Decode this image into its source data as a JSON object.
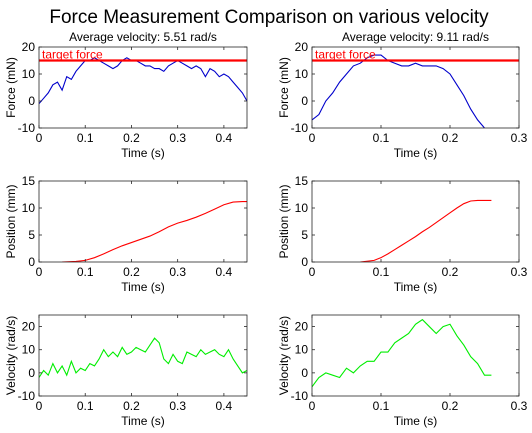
{
  "figure": {
    "title": "Force Measurement Comparison on various velocity"
  },
  "chart_data": [
    {
      "type": "line",
      "title": "Average velocity: 5.51 rad/s",
      "xlabel": "Time (s)",
      "ylabel": "Force (mN)",
      "xlim": [
        0,
        0.45
      ],
      "ylim": [
        -10,
        20
      ],
      "xticks": [
        "0",
        "0.1",
        "0.2",
        "0.3",
        "0.4"
      ],
      "yticks": [
        "-10",
        "0",
        "10",
        "20"
      ],
      "series": [
        {
          "color": "#0000cc",
          "x": [
            0,
            0.01,
            0.02,
            0.03,
            0.04,
            0.05,
            0.06,
            0.07,
            0.08,
            0.09,
            0.1,
            0.11,
            0.12,
            0.13,
            0.14,
            0.15,
            0.16,
            0.17,
            0.18,
            0.19,
            0.2,
            0.21,
            0.22,
            0.23,
            0.24,
            0.25,
            0.26,
            0.27,
            0.28,
            0.29,
            0.3,
            0.31,
            0.32,
            0.33,
            0.34,
            0.35,
            0.36,
            0.37,
            0.38,
            0.39,
            0.4,
            0.41,
            0.42,
            0.43,
            0.44,
            0.45
          ],
          "y": [
            -1,
            1,
            3,
            6,
            7,
            4,
            9,
            8,
            11,
            13,
            15,
            15,
            16,
            15,
            14,
            13,
            12,
            13,
            15,
            16,
            15,
            15,
            14,
            13,
            13,
            12,
            12,
            11,
            13,
            14,
            15,
            14,
            13,
            12,
            13,
            12,
            9,
            12,
            11,
            9,
            10,
            9,
            7,
            5,
            3,
            0
          ]
        },
        {
          "name": "target force",
          "color": "#ff0000",
          "x": [
            0,
            0.45
          ],
          "y": [
            15,
            15
          ]
        }
      ],
      "annotations": [
        {
          "text": "target force",
          "color": "#ff0000"
        }
      ]
    },
    {
      "type": "line",
      "title": "Average velocity: 9.11 rad/s",
      "xlabel": "Time (s)",
      "ylabel": "Force (mN)",
      "xlim": [
        0,
        0.3
      ],
      "ylim": [
        -10,
        20
      ],
      "xticks": [
        "0",
        "0.1",
        "0.2",
        "0.3"
      ],
      "yticks": [
        "-10",
        "0",
        "10",
        "20"
      ],
      "series": [
        {
          "color": "#0000cc",
          "x": [
            0,
            0.01,
            0.02,
            0.03,
            0.04,
            0.05,
            0.06,
            0.07,
            0.08,
            0.09,
            0.1,
            0.11,
            0.12,
            0.13,
            0.14,
            0.15,
            0.16,
            0.17,
            0.18,
            0.19,
            0.2,
            0.21,
            0.22,
            0.23,
            0.24,
            0.25
          ],
          "y": [
            -7,
            -5,
            0,
            3,
            7,
            10,
            13,
            14,
            16,
            17,
            17,
            15,
            14,
            13,
            13,
            14,
            13,
            13,
            13,
            12,
            10,
            6,
            2,
            -3,
            -7,
            -10
          ]
        },
        {
          "name": "target force",
          "color": "#ff0000",
          "x": [
            0,
            0.3
          ],
          "y": [
            15,
            15
          ]
        }
      ],
      "annotations": [
        {
          "text": "target force",
          "color": "#ff0000"
        }
      ]
    },
    {
      "type": "line",
      "xlabel": "Time (s)",
      "ylabel": "Position (mm)",
      "xlim": [
        0,
        0.45
      ],
      "ylim": [
        0,
        15
      ],
      "xticks": [
        "0",
        "0.1",
        "0.2",
        "0.3",
        "0.4"
      ],
      "yticks": [
        "0",
        "5",
        "10",
        "15"
      ],
      "series": [
        {
          "color": "#ff0000",
          "x": [
            0.05,
            0.08,
            0.1,
            0.12,
            0.14,
            0.16,
            0.18,
            0.2,
            0.22,
            0.24,
            0.26,
            0.28,
            0.3,
            0.32,
            0.34,
            0.36,
            0.38,
            0.4,
            0.42,
            0.44,
            0.45
          ],
          "y": [
            0,
            0.1,
            0.3,
            0.8,
            1.5,
            2.3,
            3.0,
            3.6,
            4.2,
            4.8,
            5.6,
            6.5,
            7.2,
            7.7,
            8.3,
            9.0,
            9.8,
            10.6,
            11.1,
            11.2,
            11.2
          ]
        }
      ]
    },
    {
      "type": "line",
      "xlabel": "Time (s)",
      "ylabel": "Position (mm)",
      "xlim": [
        0,
        0.3
      ],
      "ylim": [
        0,
        15
      ],
      "xticks": [
        "0",
        "0.1",
        "0.2",
        "0.3"
      ],
      "yticks": [
        "0",
        "5",
        "10",
        "15"
      ],
      "series": [
        {
          "color": "#ff0000",
          "x": [
            0.07,
            0.09,
            0.1,
            0.11,
            0.12,
            0.13,
            0.14,
            0.15,
            0.16,
            0.17,
            0.18,
            0.19,
            0.2,
            0.21,
            0.22,
            0.23,
            0.24,
            0.25,
            0.26
          ],
          "y": [
            0,
            0.3,
            0.8,
            1.5,
            2.3,
            3.1,
            3.9,
            4.7,
            5.6,
            6.4,
            7.3,
            8.2,
            9.1,
            10.0,
            10.8,
            11.3,
            11.4,
            11.4,
            11.4
          ]
        }
      ]
    },
    {
      "type": "line",
      "xlabel": "Time (s)",
      "ylabel": "Velocity (rad/s)",
      "xlim": [
        0,
        0.45
      ],
      "ylim": [
        -10,
        25
      ],
      "xticks": [
        "0",
        "0.1",
        "0.2",
        "0.3",
        "0.4"
      ],
      "yticks": [
        "-10",
        "0",
        "10",
        "20"
      ],
      "series": [
        {
          "color": "#00ee00",
          "x": [
            0,
            0.01,
            0.02,
            0.03,
            0.04,
            0.05,
            0.06,
            0.07,
            0.08,
            0.09,
            0.1,
            0.11,
            0.12,
            0.13,
            0.14,
            0.15,
            0.16,
            0.17,
            0.18,
            0.19,
            0.2,
            0.21,
            0.22,
            0.23,
            0.24,
            0.25,
            0.26,
            0.27,
            0.28,
            0.29,
            0.3,
            0.31,
            0.32,
            0.33,
            0.34,
            0.35,
            0.36,
            0.37,
            0.38,
            0.39,
            0.4,
            0.41,
            0.42,
            0.43,
            0.44,
            0.45
          ],
          "y": [
            -2,
            1,
            -1,
            4,
            0,
            3,
            -1,
            5,
            0,
            2,
            1,
            4,
            3,
            6,
            10,
            7,
            9,
            7,
            11,
            8,
            9,
            11,
            10,
            9,
            12,
            15,
            13,
            6,
            4,
            8,
            5,
            4,
            9,
            8,
            7,
            10,
            8,
            9,
            10,
            8,
            7,
            10,
            6,
            3,
            0,
            1
          ]
        }
      ]
    },
    {
      "type": "line",
      "xlabel": "Time (s)",
      "ylabel": "Velocity (rad/s)",
      "xlim": [
        0,
        0.3
      ],
      "ylim": [
        -10,
        25
      ],
      "xticks": [
        "0",
        "0.1",
        "0.2",
        "0.3"
      ],
      "yticks": [
        "-10",
        "0",
        "10",
        "20"
      ],
      "series": [
        {
          "color": "#00ee00",
          "x": [
            0,
            0.01,
            0.02,
            0.03,
            0.04,
            0.05,
            0.06,
            0.07,
            0.08,
            0.09,
            0.1,
            0.11,
            0.12,
            0.13,
            0.14,
            0.15,
            0.16,
            0.17,
            0.18,
            0.19,
            0.2,
            0.21,
            0.22,
            0.23,
            0.24,
            0.25,
            0.26
          ],
          "y": [
            -6,
            -2,
            0,
            -1,
            -2,
            2,
            0,
            3,
            5,
            5,
            9,
            9,
            13,
            15,
            17,
            21,
            23,
            20,
            17,
            20,
            21,
            16,
            12,
            7,
            4,
            -1,
            -1
          ]
        }
      ]
    }
  ]
}
